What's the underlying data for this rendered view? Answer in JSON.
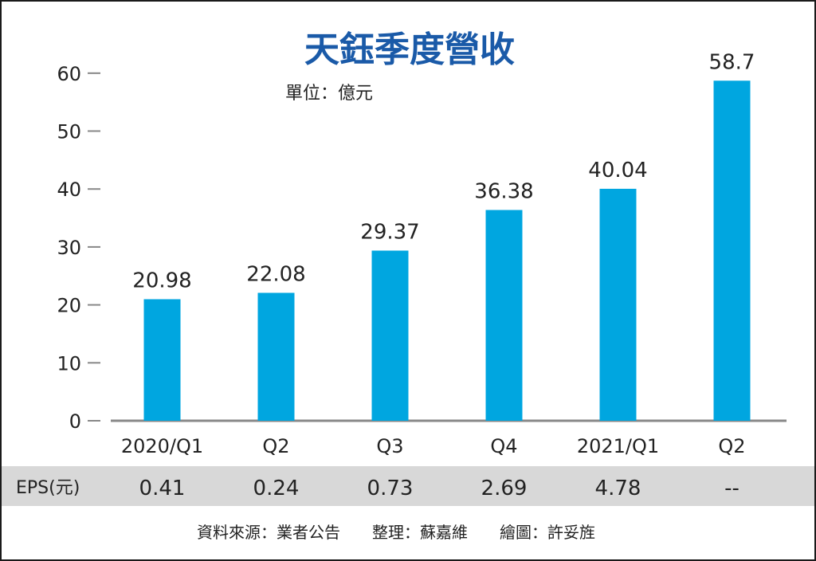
{
  "chart_data": {
    "type": "bar",
    "title": "天鈺季度營收",
    "unit": "單位：億元",
    "categories": [
      "2020/Q1",
      "Q2",
      "Q3",
      "Q4",
      "2021/Q1",
      "Q2"
    ],
    "values": [
      20.98,
      22.08,
      29.37,
      36.38,
      40.04,
      58.7
    ],
    "value_labels": [
      "20.98",
      "22.08",
      "29.37",
      "36.38",
      "40.04",
      "58.7"
    ],
    "ylim": [
      0,
      63
    ],
    "yticks": [
      0,
      10,
      20,
      30,
      40,
      50,
      60
    ],
    "grid": false,
    "bar_color": "#00a6e0",
    "title_color": "#1a5aa8",
    "eps_row": {
      "label": "EPS(元)",
      "values": [
        "0.41",
        "0.24",
        "0.73",
        "2.69",
        "4.78",
        "--"
      ],
      "background": "#d8d8d8"
    },
    "source_note": "資料來源：業者公告　　整理：蘇嘉維　　繪圖：許妥旌"
  }
}
